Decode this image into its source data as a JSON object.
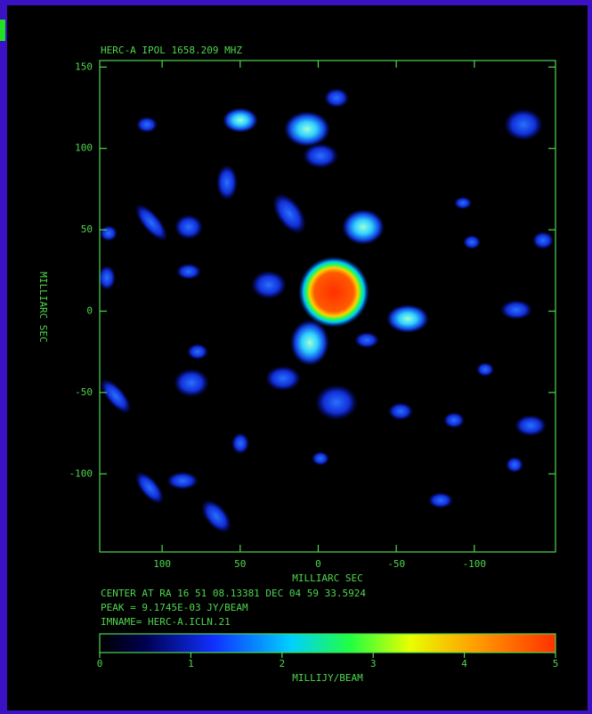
{
  "chart_data": {
    "type": "image",
    "title": "HERC-A IPOL   1658.209 MHZ",
    "x_label": "MILLIARC SEC",
    "y_label": "MILLIARC SEC",
    "xlim": [
      140,
      -152
    ],
    "ylim": [
      -148,
      154
    ],
    "xticks": [
      100,
      50,
      0,
      -50,
      -100
    ],
    "yticks": [
      150,
      100,
      50,
      0,
      -50,
      -100
    ],
    "notes": [
      "CENTER AT RA 16 51 08.13381  DEC 04 59 33.5924",
      "PEAK =  9.1745E-03 JY/BEAM",
      "IMNAME= HERC-A.ICLN.21"
    ],
    "colorbar": {
      "label": "MILLIJY/BEAM",
      "lim": [
        0,
        5
      ],
      "ticks": [
        0,
        1,
        2,
        3,
        4,
        5
      ]
    }
  }
}
